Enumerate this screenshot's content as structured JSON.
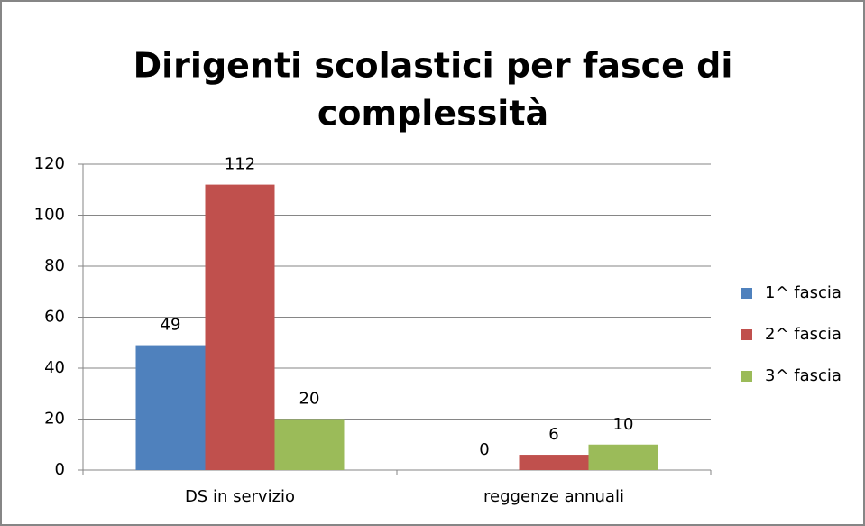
{
  "chart_data": {
    "type": "bar",
    "title": [
      "Dirigenti scolastici per fasce di",
      "complessità"
    ],
    "categories": [
      "DS in servizio",
      "reggenze annuali"
    ],
    "series": [
      {
        "name": "1^ fascia",
        "color": "#4f81bd",
        "values": [
          49,
          0
        ]
      },
      {
        "name": "2^ fascia",
        "color": "#c0504d",
        "values": [
          112,
          6
        ]
      },
      {
        "name": "3^ fascia",
        "color": "#9bbb59",
        "values": [
          20,
          10
        ]
      }
    ],
    "ylim": [
      0,
      120
    ],
    "yticks": [
      0,
      20,
      40,
      60,
      80,
      100,
      120
    ],
    "grid": true,
    "legend": "right"
  }
}
